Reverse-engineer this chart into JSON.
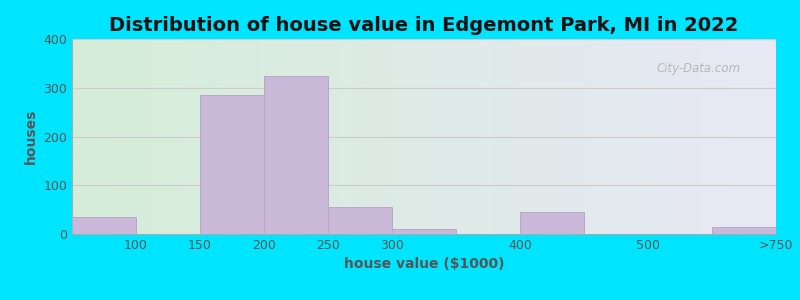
{
  "title": "Distribution of house value in Edgemont Park, MI in 2022",
  "xlabel": "house value ($1000)",
  "ylabel": "houses",
  "bar_color": "#c9b8d8",
  "bar_edge_color": "#b8a8cc",
  "xtick_labels": [
    "100",
    "150",
    "200",
    "250",
    "300",
    "400",
    "500",
    ">750"
  ],
  "ylim": [
    0,
    400
  ],
  "yticks": [
    0,
    100,
    200,
    300,
    400
  ],
  "background_outer": "#00e5ff",
  "bg_left_color": "#d5edd8",
  "bg_right_color": "#e8e8f5",
  "grid_color": "#cccccc",
  "title_fontsize": 14,
  "axis_label_fontsize": 10,
  "tick_fontsize": 9,
  "tick_color": "#555555",
  "label_color": "#555555",
  "watermark_text": "City-Data.com",
  "bar_lefts": [
    0,
    1,
    2,
    3,
    4,
    5,
    6,
    7,
    8,
    9,
    10
  ],
  "bar_widths": [
    1,
    1,
    1,
    1,
    1,
    1,
    1,
    1,
    1,
    1,
    1
  ],
  "bar_heights": [
    35,
    0,
    285,
    325,
    55,
    10,
    0,
    45,
    0,
    0,
    15
  ],
  "xlim": [
    0,
    11
  ],
  "xtick_positions": [
    1,
    2,
    3,
    4,
    5,
    7,
    9,
    11
  ]
}
